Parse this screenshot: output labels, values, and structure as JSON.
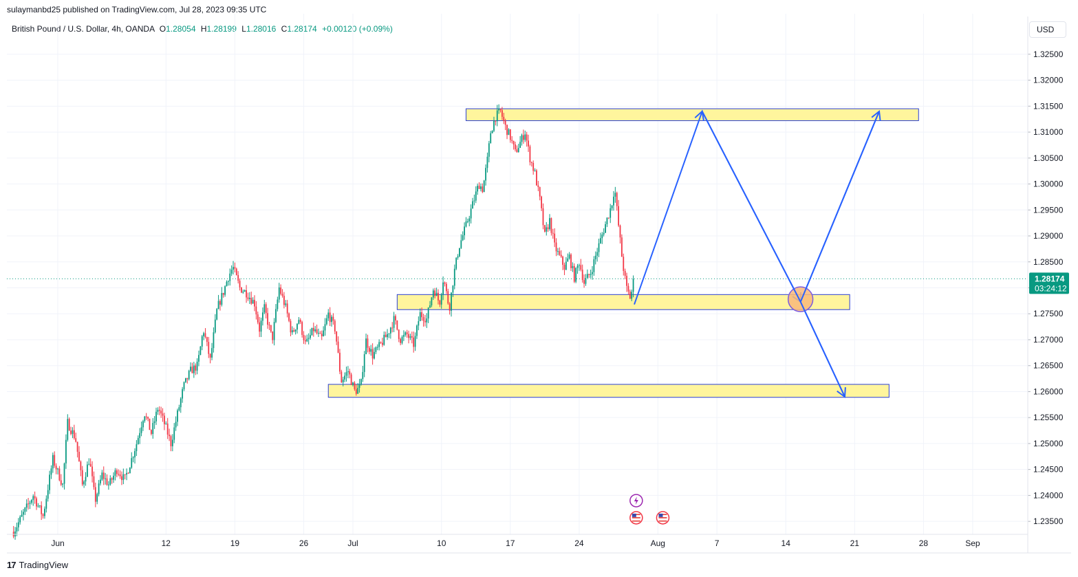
{
  "header": {
    "published": "sulaymanbd25 published on TradingView.com, Jul 28, 2023 09:35 UTC"
  },
  "legend": {
    "symbol": "British Pound / U.S. Dollar, 4h, OANDA",
    "open_label": "O",
    "open": "1.28054",
    "high_label": "H",
    "high": "1.28199",
    "low_label": "L",
    "low": "1.28016",
    "close_label": "C",
    "close": "1.28174",
    "change": "+0.00120 (+0.09%)"
  },
  "currency_button": "USD",
  "price_tag": {
    "price": "1.28174",
    "countdown": "03:24:12"
  },
  "footer": {
    "brand": "TradingView",
    "logo_icon": "tradingview-logo-icon"
  },
  "colors": {
    "up": "#089981",
    "down": "#f23645",
    "zone_fill": "#fff59d",
    "zone_border": "#2a3fd6",
    "arrow": "#2962ff",
    "circle": "#f9b97a"
  },
  "chart_data": {
    "type": "candlestick",
    "ylim": [
      1.2325,
      1.3275
    ],
    "y_ticks": [
      "1.23500",
      "1.24000",
      "1.24500",
      "1.25000",
      "1.25500",
      "1.26000",
      "1.26500",
      "1.27000",
      "1.27500",
      "1.28000",
      "1.28500",
      "1.29000",
      "1.29500",
      "1.30000",
      "1.30500",
      "1.31000",
      "1.31500",
      "1.32000",
      "1.32500"
    ],
    "x_ticks": [
      {
        "label": "Jun",
        "day": 0
      },
      {
        "label": "12",
        "day": 11
      },
      {
        "label": "19",
        "day": 18
      },
      {
        "label": "26",
        "day": 25
      },
      {
        "label": "Jul",
        "day": 30
      },
      {
        "label": "10",
        "day": 39
      },
      {
        "label": "17",
        "day": 46
      },
      {
        "label": "24",
        "day": 53
      },
      {
        "label": "Aug",
        "day": 61
      },
      {
        "label": "7",
        "day": 67
      },
      {
        "label": "14",
        "day": 74
      },
      {
        "label": "21",
        "day": 81
      },
      {
        "label": "28",
        "day": 88
      },
      {
        "label": "Sep",
        "day": 93
      }
    ],
    "last_price": 1.28174,
    "path_points": [
      [
        -4.5,
        1.233
      ],
      [
        -3.5,
        1.2365
      ],
      [
        -2.5,
        1.24
      ],
      [
        -1.5,
        1.236
      ],
      [
        -0.5,
        1.247
      ],
      [
        0.5,
        1.242
      ],
      [
        1,
        1.254
      ],
      [
        1.8,
        1.251
      ],
      [
        2.5,
        1.242
      ],
      [
        3.2,
        1.247
      ],
      [
        3.8,
        1.239
      ],
      [
        4.5,
        1.244
      ],
      [
        5.2,
        1.242
      ],
      [
        6,
        1.245
      ],
      [
        6.8,
        1.243
      ],
      [
        7.5,
        1.247
      ],
      [
        8,
        1.25
      ],
      [
        8.8,
        1.256
      ],
      [
        9.5,
        1.252
      ],
      [
        10.2,
        1.257
      ],
      [
        11,
        1.253
      ],
      [
        11.5,
        1.25
      ],
      [
        12.2,
        1.256
      ],
      [
        12.8,
        1.261
      ],
      [
        13.5,
        1.264
      ],
      [
        14.2,
        1.265
      ],
      [
        14.8,
        1.272
      ],
      [
        15.5,
        1.266
      ],
      [
        16.2,
        1.276
      ],
      [
        16.8,
        1.279
      ],
      [
        17.3,
        1.282
      ],
      [
        17.8,
        1.284
      ],
      [
        18.5,
        1.28
      ],
      [
        19.2,
        1.279
      ],
      [
        20,
        1.277
      ],
      [
        20.5,
        1.272
      ],
      [
        21,
        1.276
      ],
      [
        21.8,
        1.27
      ],
      [
        22.5,
        1.28
      ],
      [
        23.2,
        1.276
      ],
      [
        23.8,
        1.271
      ],
      [
        24.5,
        1.274
      ],
      [
        25.2,
        1.269
      ],
      [
        26,
        1.272
      ],
      [
        26.8,
        1.27
      ],
      [
        27.5,
        1.275
      ],
      [
        28.2,
        1.272
      ],
      [
        28.8,
        1.262
      ],
      [
        29.5,
        1.264
      ],
      [
        30.2,
        1.26
      ],
      [
        30.8,
        1.261
      ],
      [
        31.3,
        1.27
      ],
      [
        32,
        1.267
      ],
      [
        32.8,
        1.269
      ],
      [
        33.5,
        1.271
      ],
      [
        34.2,
        1.274
      ],
      [
        34.8,
        1.27
      ],
      [
        35.5,
        1.271
      ],
      [
        36.2,
        1.269
      ],
      [
        36.8,
        1.275
      ],
      [
        37.5,
        1.274
      ],
      [
        38.2,
        1.28
      ],
      [
        38.8,
        1.277
      ],
      [
        39.2,
        1.282
      ],
      [
        39.8,
        1.276
      ],
      [
        40.3,
        1.283
      ],
      [
        40.8,
        1.288
      ],
      [
        41.5,
        1.292
      ],
      [
        42,
        1.295
      ],
      [
        42.8,
        1.3
      ],
      [
        43.2,
        1.299
      ],
      [
        43.7,
        1.305
      ],
      [
        44,
        1.31
      ],
      [
        44.5,
        1.313
      ],
      [
        45,
        1.314
      ],
      [
        45.5,
        1.311
      ],
      [
        46,
        1.309
      ],
      [
        46.5,
        1.306
      ],
      [
        47,
        1.308
      ],
      [
        47.5,
        1.31
      ],
      [
        48,
        1.305
      ],
      [
        48.5,
        1.302
      ],
      [
        49,
        1.297
      ],
      [
        49.5,
        1.29
      ],
      [
        50,
        1.293
      ],
      [
        50.5,
        1.288
      ],
      [
        51,
        1.286
      ],
      [
        51.5,
        1.284
      ],
      [
        52,
        1.286
      ],
      [
        52.5,
        1.282
      ],
      [
        53,
        1.285
      ],
      [
        53.5,
        1.281
      ],
      [
        54.2,
        1.283
      ],
      [
        54.8,
        1.287
      ],
      [
        55.3,
        1.29
      ],
      [
        55.8,
        1.293
      ],
      [
        56.3,
        1.296
      ],
      [
        56.6,
        1.2995
      ],
      [
        57,
        1.292
      ],
      [
        57.4,
        1.285
      ],
      [
        57.8,
        1.28
      ],
      [
        58.2,
        1.278
      ],
      [
        58.6,
        1.2817
      ]
    ],
    "zones": [
      {
        "from_day": 41.5,
        "to_day": 87.5,
        "low": 1.3122,
        "high": 1.3145
      },
      {
        "from_day": 34.5,
        "to_day": 80.5,
        "low": 1.2758,
        "high": 1.2787
      },
      {
        "from_day": 27.5,
        "to_day": 84.5,
        "low": 1.2589,
        "high": 1.2614
      }
    ],
    "projection_path": [
      [
        58.6,
        1.2768
      ],
      [
        65.5,
        1.314
      ],
      [
        75.5,
        1.2773
      ],
      [
        83.5,
        1.314
      ]
    ],
    "projection_path_alt": [
      [
        75.5,
        1.2773
      ],
      [
        80.0,
        1.259
      ]
    ],
    "target_circle": {
      "day": 75.5,
      "price": 1.2778
    },
    "event_markers": [
      {
        "day": 58.8,
        "price": 1.239,
        "icon": "lightning-icon"
      },
      {
        "day": 58.8,
        "price": 1.2357,
        "icon": "us-flag-icon"
      },
      {
        "day": 61.5,
        "price": 1.2357,
        "icon": "us-flag-icon"
      }
    ]
  }
}
